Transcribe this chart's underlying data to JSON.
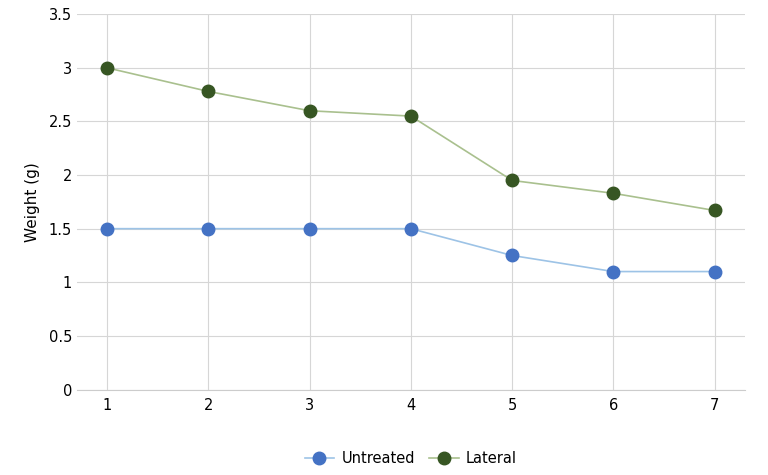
{
  "x": [
    1,
    2,
    3,
    4,
    5,
    6,
    7
  ],
  "untreated": [
    1.5,
    1.5,
    1.5,
    1.5,
    1.25,
    1.1,
    1.1
  ],
  "lateral": [
    3.0,
    2.78,
    2.6,
    2.55,
    1.95,
    1.83,
    1.67
  ],
  "untreated_color": "#4472c4",
  "lateral_color": "#375623",
  "line_untreated_color": "#9dc3e6",
  "line_lateral_color": "#a9c08e",
  "background_color": "#ffffff",
  "grid_color": "#d6d6d6",
  "ylabel": "Weight (g)",
  "ylim": [
    0,
    3.5
  ],
  "yticks": [
    0,
    0.5,
    1.0,
    1.5,
    2.0,
    2.5,
    3.0,
    3.5
  ],
  "xlim": [
    0.7,
    7.3
  ],
  "xticks": [
    1,
    2,
    3,
    4,
    5,
    6,
    7
  ],
  "legend_labels": [
    "Untreated",
    "Lateral"
  ],
  "marker_size": 9,
  "line_width": 1.2
}
